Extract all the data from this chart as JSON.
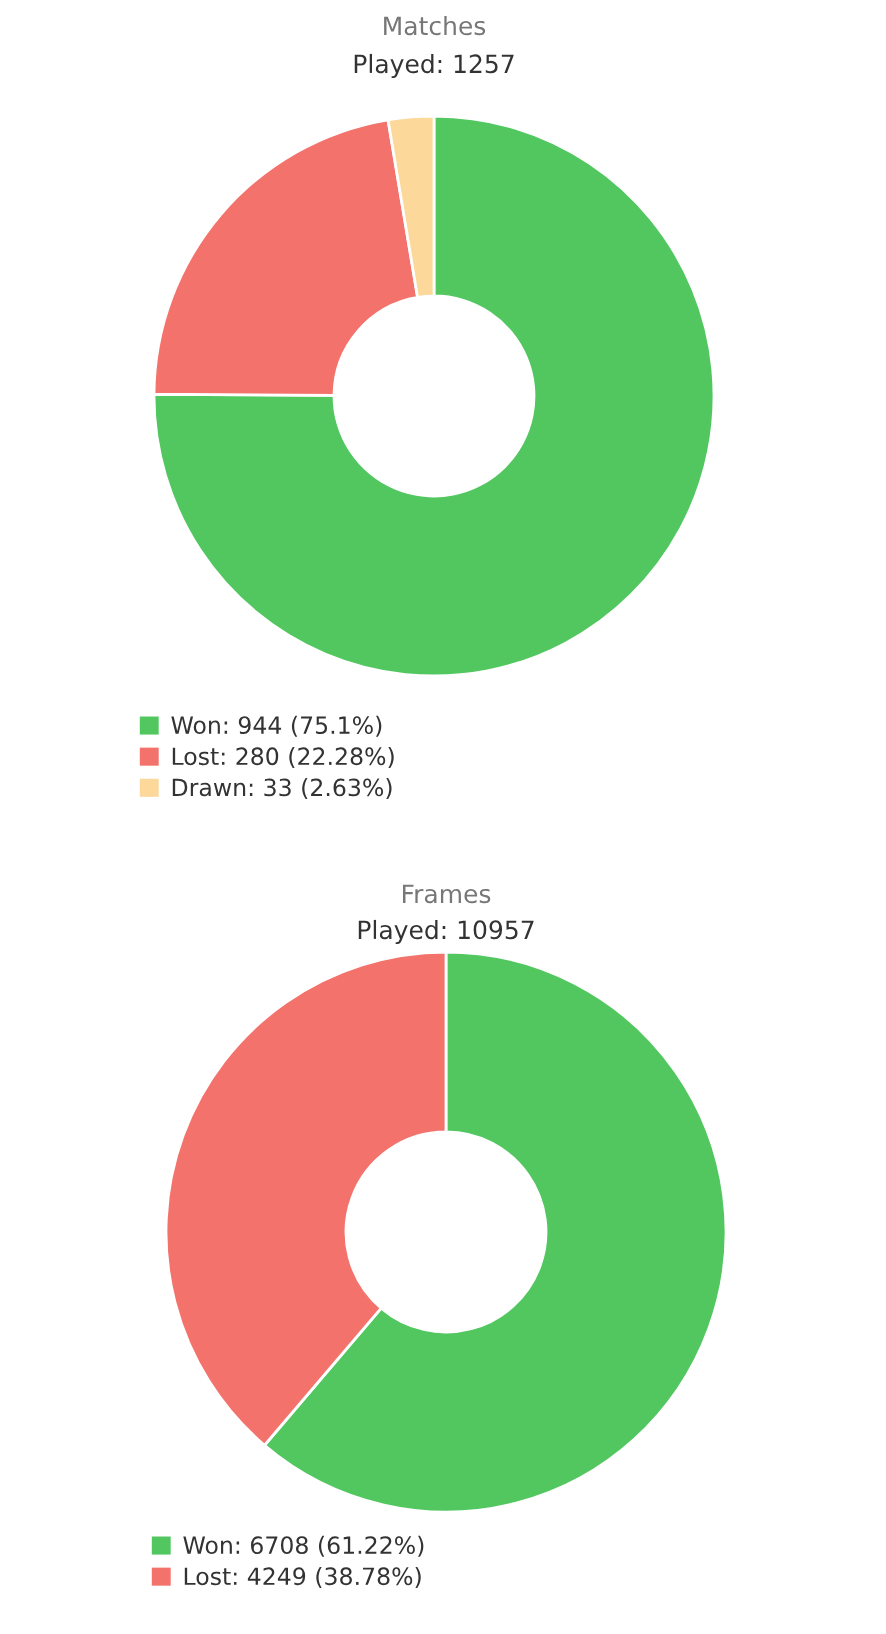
{
  "chart_data": [
    {
      "type": "donut",
      "title": "Matches",
      "subtitle": "Played: 1257",
      "categories": [
        "Won: 944 (75.1%)",
        "Lost: 280 (22.28%)",
        "Drawn: 33 (2.63%)"
      ],
      "values": [
        944,
        280,
        33
      ],
      "colors": [
        "#52c75f",
        "#f3736c",
        "#fcd89a"
      ],
      "legend": "bottom left"
    },
    {
      "type": "donut",
      "title": "Frames",
      "subtitle": "Played: 10957",
      "categories": [
        "Won: 6708 (61.22%)",
        "Lost: 4249 (38.78%)"
      ],
      "values": [
        6708,
        4249
      ],
      "colors": [
        "#52c75f",
        "#f3736c"
      ],
      "legend": "bottom left"
    }
  ]
}
